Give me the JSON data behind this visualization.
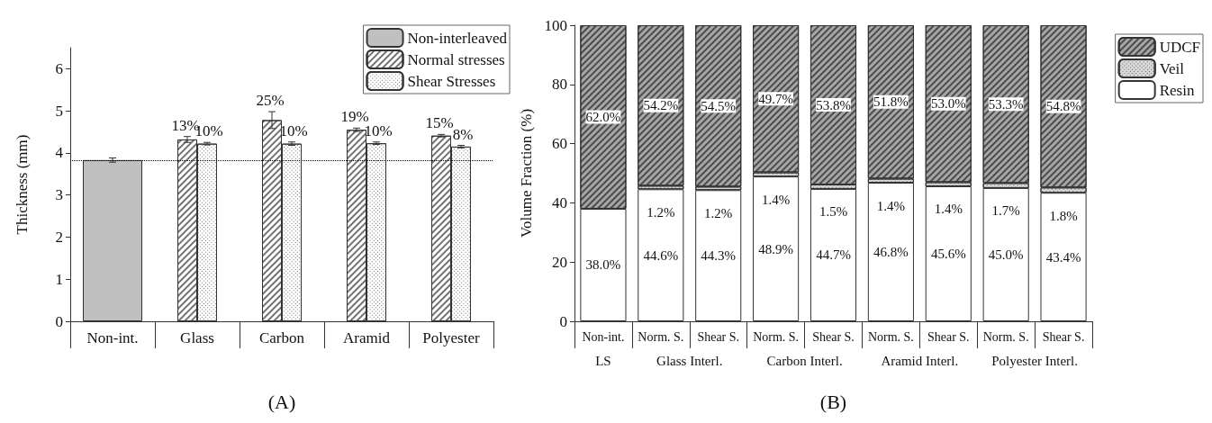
{
  "chart_data": [
    {
      "type": "bar",
      "xlabel": "(A)",
      "ylabel": "Thickness (mm)",
      "categories": [
        "Non-int.",
        "Glass",
        "Carbon",
        "Aramid",
        "Polyester"
      ],
      "ylim": [
        0,
        6.5
      ],
      "yticks": [
        0,
        1,
        2,
        3,
        4,
        5,
        6
      ],
      "legend": "top right",
      "grid": false,
      "series": [
        {
          "name": "Non-interleaved",
          "color": "#c0c0c0",
          "values": [
            3.83,
            null,
            null,
            null,
            null
          ],
          "errors": [
            0.05,
            null,
            null,
            null,
            null
          ]
        },
        {
          "name": "Normal stresses",
          "color": "#ffffff",
          "values": [
            null,
            4.32,
            4.78,
            4.55,
            4.41
          ],
          "errors": [
            null,
            0.07,
            0.2,
            0.04,
            0.03
          ]
        },
        {
          "name": "Shear Stresses",
          "color": "#ffffff",
          "values": [
            null,
            4.22,
            4.22,
            4.23,
            4.15
          ],
          "errors": [
            null,
            0.03,
            0.04,
            0.03,
            0.03
          ]
        }
      ],
      "annotations": [
        {
          "text": "13%",
          "x": "Glass",
          "y": 4.32
        },
        {
          "text": "10%",
          "x": "Glass",
          "y": 4.22
        },
        {
          "text": "25%",
          "x": "Carbon",
          "y": 4.78
        },
        {
          "text": "10%",
          "x": "Carbon",
          "y": 4.22
        },
        {
          "text": "19%",
          "x": "Aramid",
          "y": 4.55
        },
        {
          "text": "10%",
          "x": "Aramid",
          "y": 4.23
        },
        {
          "text": "15%",
          "x": "Polyester",
          "y": 4.41
        },
        {
          "text": "8%",
          "x": "Polyester",
          "y": 4.15
        }
      ],
      "ref_lines": [
        {
          "axis": "y",
          "value": 3.83,
          "line_style": "dotted",
          "color": "#000000"
        }
      ]
    },
    {
      "type": "bar",
      "stacked": true,
      "xlabel": "(B)",
      "ylabel": "Volume Fraction (%)",
      "categories": [
        "Non-int.",
        "Norm. S.",
        "Shear S.",
        "Norm. S.",
        "Shear S.",
        "Norm. S.",
        "Shear S.",
        "Norm. S.",
        "Shear S."
      ],
      "ylim": [
        0,
        100
      ],
      "yticks": [
        0,
        20,
        40,
        60,
        80,
        100
      ],
      "legend": "right",
      "grid": false,
      "annotations": [
        "LS",
        "Glass Interl.",
        "Carbon Interl.",
        "Aramid Interl.",
        "Polyester Interl."
      ],
      "series": [
        {
          "name": "Resin",
          "color": "#ffffff",
          "values": [
            38.0,
            44.6,
            44.3,
            48.9,
            44.7,
            46.8,
            45.6,
            45.0,
            43.4
          ],
          "value_labels": [
            "38.0%",
            "44.6%",
            "44.3%",
            "48.9%",
            "44.7%",
            "46.8%",
            "45.6%",
            "45.0%",
            "43.4%"
          ]
        },
        {
          "name": "Veil",
          "color": "#d9d9d9",
          "values": [
            null,
            1.2,
            1.2,
            1.4,
            1.5,
            1.4,
            1.4,
            1.7,
            1.8
          ],
          "value_labels": [
            null,
            "1.2%",
            "1.2%",
            "1.4%",
            "1.5%",
            "1.4%",
            "1.4%",
            "1.7%",
            "1.8%"
          ]
        },
        {
          "name": "UDCF",
          "color": "#a6a6a6",
          "values": [
            62.0,
            54.2,
            54.5,
            49.7,
            53.8,
            51.8,
            53.0,
            53.3,
            54.8
          ],
          "value_labels": [
            "62.0%",
            "54.2%",
            "54.5%",
            "49.7%",
            "53.8%",
            "51.8%",
            "53.0%",
            "53.3%",
            "54.8%"
          ]
        }
      ]
    }
  ]
}
